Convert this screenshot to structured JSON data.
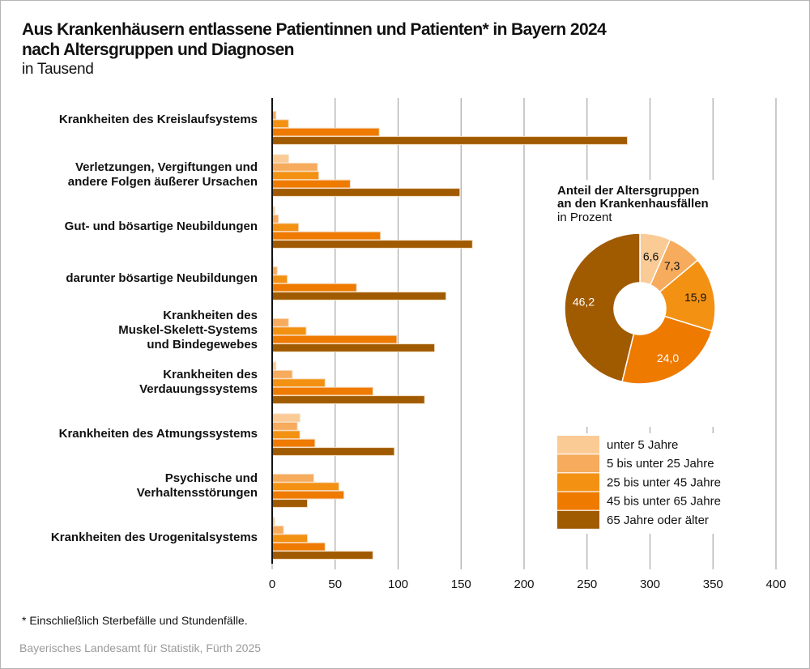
{
  "title_line1": "Aus Krankenhäusern entlassene Patientinnen und Patienten* in Bayern 2024",
  "title_line2": "nach Altersgruppen und Diagnosen",
  "subtitle": "in Tausend",
  "footnote": "* Einschließlich Sterbefälle und Stundenfälle.",
  "source": "Bayerisches Landesamt für Statistik, Fürth 2025",
  "colors": {
    "unter5": "#FBCB96",
    "5bis25": "#F6AB5D",
    "25bis45": "#F39113",
    "45bis65": "#EE7A00",
    "65plus": "#A05A00"
  },
  "chart_data": [
    {
      "type": "bar",
      "orientation": "horizontal",
      "title": "Aus Krankenhäusern entlassene Patientinnen und Patienten* in Bayern 2024 nach Altersgruppen und Diagnosen",
      "unit": "in Tausend",
      "xlim": [
        0,
        400
      ],
      "xticks": [
        0,
        50,
        100,
        150,
        200,
        250,
        300,
        350,
        400
      ],
      "grid": true,
      "categories": [
        [
          "Krankheiten des Kreislaufsystems"
        ],
        [
          "Verletzungen, Vergiftungen und",
          "andere Folgen äußerer Ursachen"
        ],
        [
          "Gut- und bösartige Neubildungen"
        ],
        [
          "darunter bösartige Neubildungen"
        ],
        [
          "Krankheiten des",
          "Muskel-Skelett-Systems",
          "und Bindegewebes"
        ],
        [
          "Krankheiten des",
          "Verdauungssystems"
        ],
        [
          "Krankheiten des Atmungssystems"
        ],
        [
          "Psychische und",
          "Verhaltensstörungen"
        ],
        [
          "Krankheiten des Urogenitalsystems"
        ]
      ],
      "series": [
        {
          "name": "unter 5 Jahre",
          "color_key": "unter5",
          "values": [
            0.5,
            13,
            2,
            1,
            0.5,
            3,
            22,
            0.5,
            2
          ]
        },
        {
          "name": "5 bis unter 25 Jahre",
          "color_key": "5bis25",
          "values": [
            3,
            36,
            5,
            4,
            13,
            16,
            20,
            33,
            9
          ]
        },
        {
          "name": "25 bis unter 45 Jahre",
          "color_key": "25bis45",
          "values": [
            13,
            37,
            21,
            12,
            27,
            42,
            22,
            53,
            28
          ]
        },
        {
          "name": "45 bis unter 65 Jahre",
          "color_key": "45bis65",
          "values": [
            85,
            62,
            86,
            67,
            99,
            80,
            34,
            57,
            42
          ]
        },
        {
          "name": "65 Jahre oder älter",
          "color_key": "65plus",
          "values": [
            282,
            149,
            159,
            138,
            129,
            121,
            97,
            28,
            80
          ]
        }
      ],
      "legend": "right"
    },
    {
      "type": "pie",
      "donut": true,
      "title_lines": [
        "Anteil der Altersgruppen",
        "an den Krankenhausfällen"
      ],
      "subtitle": "in Prozent",
      "slices": [
        {
          "name": "unter 5 Jahre",
          "value": 6.6,
          "label": "6,6",
          "color_key": "unter5",
          "label_color": "#111111"
        },
        {
          "name": "5 bis unter 25 Jahre",
          "value": 7.3,
          "label": "7,3",
          "color_key": "5bis25",
          "label_color": "#111111"
        },
        {
          "name": "25 bis unter 45 Jahre",
          "value": 15.9,
          "label": "15,9",
          "color_key": "25bis45",
          "label_color": "#111111"
        },
        {
          "name": "45 bis unter 65 Jahre",
          "value": 24.0,
          "label": "24,0",
          "color_key": "45bis65",
          "label_color": "#ffffff"
        },
        {
          "name": "65 Jahre oder älter",
          "value": 46.2,
          "label": "46,2",
          "color_key": "65plus",
          "label_color": "#ffffff"
        }
      ]
    }
  ],
  "legend": [
    {
      "label": "unter 5 Jahre",
      "color_key": "unter5"
    },
    {
      "label": "5 bis unter 25 Jahre",
      "color_key": "5bis25"
    },
    {
      "label": "25 bis unter 45 Jahre",
      "color_key": "25bis45"
    },
    {
      "label": "45 bis unter 65 Jahre",
      "color_key": "45bis65"
    },
    {
      "label": "65 Jahre oder älter",
      "color_key": "65plus"
    }
  ]
}
